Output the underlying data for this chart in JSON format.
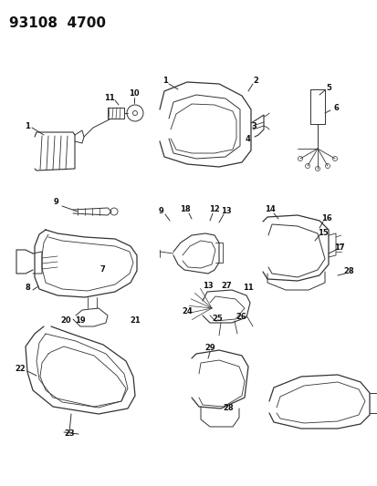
{
  "title_text": "93108  4700",
  "bg_color": "#ffffff",
  "diagram_color": "#333333",
  "fig_width": 4.14,
  "fig_height": 5.33,
  "dpi": 100,
  "title_fontsize": 11,
  "label_fontsize": 6.0
}
